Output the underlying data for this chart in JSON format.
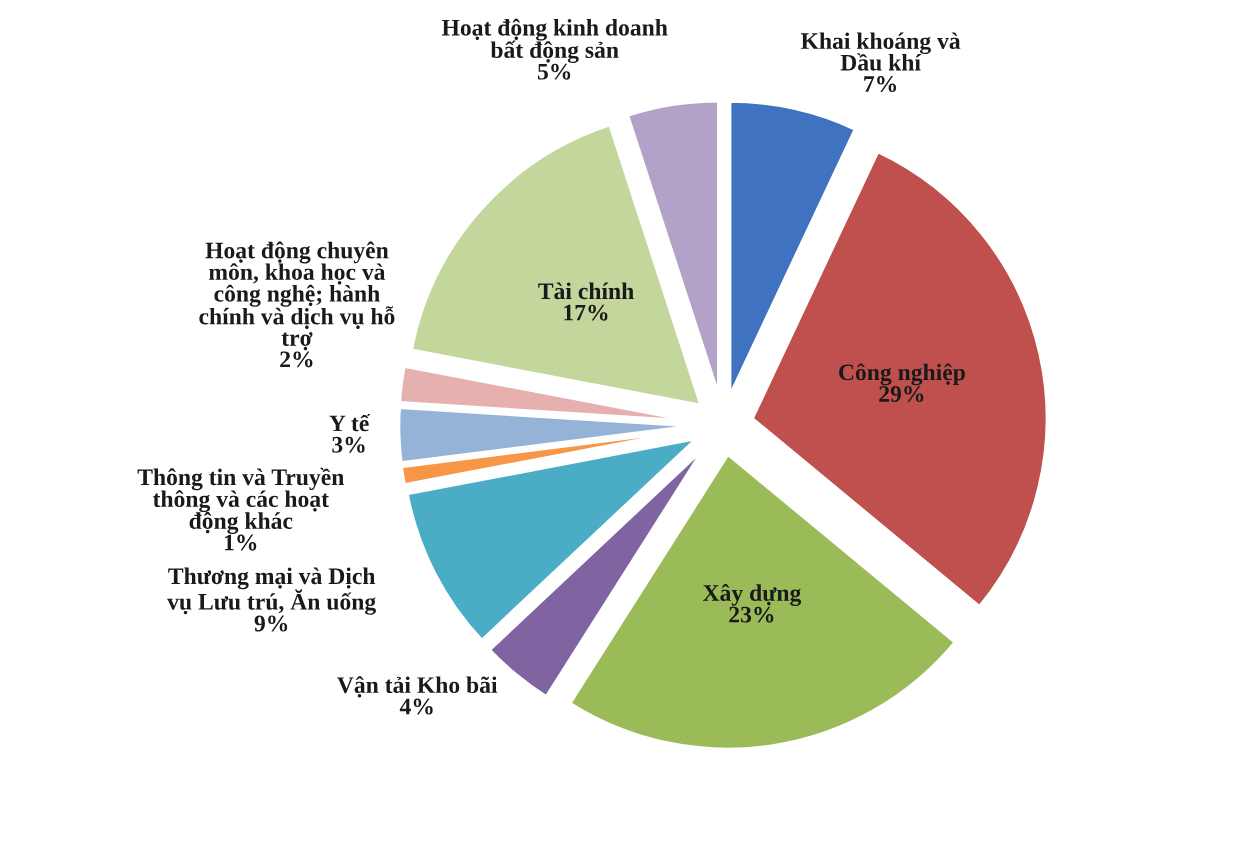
{
  "chart_data": {
    "type": "pie",
    "data_labels": true,
    "categories": [
      "Khai khoáng và\nDầu khí",
      "Công nghiệp",
      "Xây dựng",
      "Vận tải Kho bãi",
      "Thương mại và Dịch\nvụ Lưu trú, Ăn uống",
      "Thông tin và Truyền\nthông và các hoạt\nđộng khác",
      "Y tế",
      "Hoạt động chuyên\nmôn, khoa học và\ncông nghệ; hành\nchính và dịch vụ hỗ\ntrợ",
      "Tài chính",
      "Hoạt động kinh doanh\nbất động sản"
    ],
    "values": [
      7,
      29,
      23,
      4,
      9,
      1,
      3,
      2,
      17,
      5
    ],
    "value_labels": [
      "7%",
      "29%",
      "23%",
      "4%",
      "9%",
      "1%",
      "3%",
      "2%",
      "17%",
      "5%"
    ],
    "colors": [
      "#3f72c0",
      "#c0504d",
      "#9bbb59",
      "#8064a2",
      "#4bacc6",
      "#f79646",
      "#95b3d7",
      "#e6b0ae",
      "#c3d69b",
      "#b3a2c7"
    ]
  }
}
